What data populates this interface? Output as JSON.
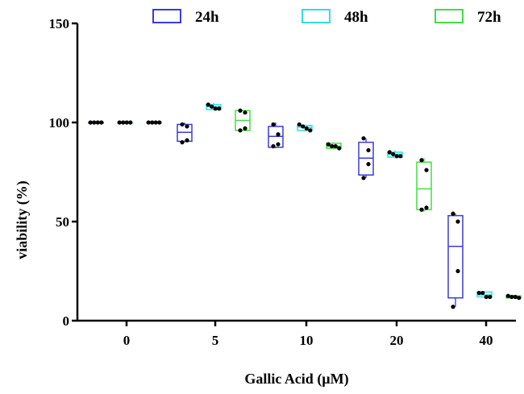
{
  "chart_data": {
    "type": "box",
    "xlabel": "Gallic Acid (µM)",
    "ylabel": "viability (%)",
    "categories": [
      "0",
      "5",
      "10",
      "20",
      "40"
    ],
    "ylim": [
      0,
      150
    ],
    "yticks": [
      0,
      50,
      100,
      150
    ],
    "legend_position": "top",
    "series": [
      {
        "name": "24h",
        "color": "#3b3bd9",
        "boxes": [
          {
            "min": 100,
            "q1": 100,
            "median": 100,
            "q3": 100,
            "max": 100,
            "points": [
              100,
              100,
              100,
              100
            ]
          },
          {
            "min": 90,
            "q1": 90.5,
            "median": 95,
            "q3": 99,
            "max": 100,
            "points": [
              99,
              98,
              91,
              90
            ]
          },
          {
            "min": 87,
            "q1": 87.5,
            "median": 93,
            "q3": 98,
            "max": 100,
            "points": [
              99,
              94,
              89,
              88
            ]
          },
          {
            "min": 72,
            "q1": 73.5,
            "median": 82,
            "q3": 90,
            "max": 92,
            "points": [
              92,
              86,
              79,
              72
            ]
          },
          {
            "min": 7,
            "q1": 11.5,
            "median": 37.5,
            "q3": 53,
            "max": 54,
            "points": [
              54,
              50,
              25,
              7
            ]
          }
        ]
      },
      {
        "name": "48h",
        "color": "#33dddd",
        "boxes": [
          {
            "min": 100,
            "q1": 100,
            "median": 100,
            "q3": 100,
            "max": 100,
            "points": [
              100,
              100,
              100,
              100
            ]
          },
          {
            "min": 106,
            "q1": 106.5,
            "median": 108,
            "q3": 109,
            "max": 110,
            "points": [
              109,
              108,
              107,
              107
            ]
          },
          {
            "min": 96,
            "q1": 96,
            "median": 97.5,
            "q3": 98.5,
            "max": 99,
            "points": [
              99,
              98,
              97,
              96
            ]
          },
          {
            "min": 82,
            "q1": 82.5,
            "median": 84,
            "q3": 85,
            "max": 86,
            "points": [
              85,
              84,
              83,
              83
            ]
          },
          {
            "min": 11.5,
            "q1": 12,
            "median": 13,
            "q3": 14.5,
            "max": 15,
            "points": [
              14,
              14,
              12,
              12
            ]
          }
        ]
      },
      {
        "name": "72h",
        "color": "#44dd44",
        "boxes": [
          {
            "min": 100,
            "q1": 100,
            "median": 100,
            "q3": 100,
            "max": 100,
            "points": [
              100,
              100,
              100,
              100
            ]
          },
          {
            "min": 96,
            "q1": 96,
            "median": 101,
            "q3": 106,
            "max": 106,
            "points": [
              106,
              105,
              97,
              96
            ]
          },
          {
            "min": 86.5,
            "q1": 87,
            "median": 88,
            "q3": 89.5,
            "max": 90,
            "points": [
              89,
              88,
              88,
              87
            ]
          },
          {
            "min": 55,
            "q1": 56,
            "median": 66.5,
            "q3": 80,
            "max": 82,
            "points": [
              81,
              76,
              57,
              56
            ]
          },
          {
            "min": 11.5,
            "q1": 11.5,
            "median": 12,
            "q3": 12.5,
            "max": 13,
            "points": [
              12.5,
              12,
              12,
              11.5
            ]
          }
        ]
      }
    ]
  }
}
